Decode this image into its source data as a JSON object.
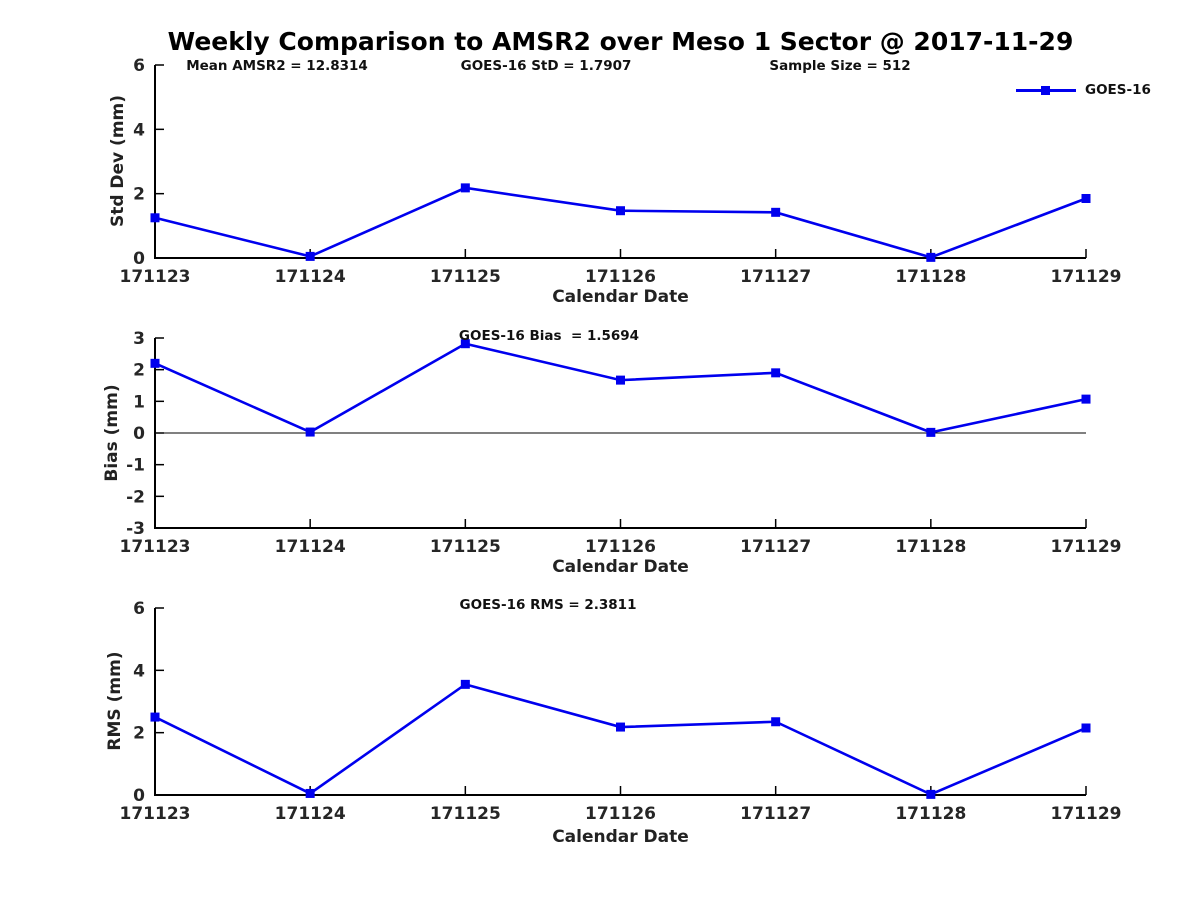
{
  "figure": {
    "title": "Weekly Comparison to AMSR2 over Meso 1 Sector @ 2017-11-29",
    "stats": {
      "mean_amsr2": "Mean AMSR2 = 12.8314",
      "goes16_std": "GOES-16 StD = 1.7907",
      "sample_size": "Sample Size = 512",
      "goes16_bias": "GOES-16 Bias  = 1.5694",
      "goes16_rms": "GOES-16 RMS = 2.3811"
    },
    "legend": {
      "label": "GOES-16",
      "color": "#0000EE",
      "marker": "square",
      "position": "top-right"
    }
  },
  "chart_data": [
    {
      "id": "std-dev",
      "type": "line",
      "series_name": "GOES-16",
      "title": "",
      "xlabel": "Calendar Date",
      "ylabel": "Std Dev (mm)",
      "categories": [
        "171123",
        "171124",
        "171125",
        "171126",
        "171127",
        "171128",
        "171129"
      ],
      "values": [
        1.25,
        0.05,
        2.18,
        1.47,
        1.42,
        0.02,
        1.85
      ],
      "ylim": [
        0,
        6
      ],
      "yticks": [
        0,
        2,
        4,
        6
      ],
      "ytick_labels": [
        "0",
        "2",
        "4",
        "6"
      ],
      "grid": false,
      "zero_line": false,
      "line_color": "#0000EE",
      "marker": "square"
    },
    {
      "id": "bias",
      "type": "line",
      "series_name": "GOES-16",
      "title": "",
      "xlabel": "Calendar Date",
      "ylabel": "Bias (mm)",
      "categories": [
        "171123",
        "171124",
        "171125",
        "171126",
        "171127",
        "171128",
        "171129"
      ],
      "values": [
        2.2,
        0.03,
        2.82,
        1.67,
        1.9,
        0.02,
        1.07
      ],
      "ylim": [
        -3,
        3
      ],
      "yticks": [
        -3,
        -2,
        -1,
        0,
        1,
        2,
        3
      ],
      "ytick_labels": [
        "-3",
        "-2",
        "-1",
        "0",
        "1",
        "2",
        "3"
      ],
      "grid": false,
      "zero_line": true,
      "line_color": "#0000EE",
      "marker": "square"
    },
    {
      "id": "rms",
      "type": "line",
      "series_name": "GOES-16",
      "title": "",
      "xlabel": "Calendar Date",
      "ylabel": "RMS (mm)",
      "categories": [
        "171123",
        "171124",
        "171125",
        "171126",
        "171127",
        "171128",
        "171129"
      ],
      "values": [
        2.5,
        0.05,
        3.55,
        2.18,
        2.35,
        0.02,
        2.15
      ],
      "ylim": [
        0,
        6
      ],
      "yticks": [
        0,
        2,
        4,
        6
      ],
      "ytick_labels": [
        "0",
        "2",
        "4",
        "6"
      ],
      "grid": false,
      "zero_line": false,
      "line_color": "#0000EE",
      "marker": "square"
    }
  ]
}
